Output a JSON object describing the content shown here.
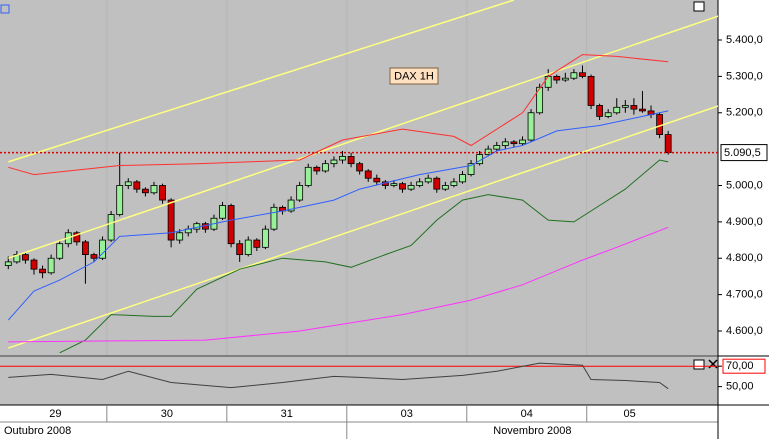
{
  "chart_data": {
    "type": "candlestick",
    "annotation": "DAX 1H",
    "ylim": [
      4534,
      5510
    ],
    "yticks": [
      {
        "value": 5400,
        "label": "5.400,0"
      },
      {
        "value": 5300,
        "label": "5.300,0"
      },
      {
        "value": 5200,
        "label": "5.200,0"
      },
      {
        "value": 5000,
        "label": "5.000,0"
      },
      {
        "value": 4900,
        "label": "4.900,0"
      },
      {
        "value": 4800,
        "label": "4.800,0"
      },
      {
        "value": 4700,
        "label": "4.700,0"
      },
      {
        "value": 4600,
        "label": "4.600,0"
      }
    ],
    "last_price_label": "5.090,5",
    "up_color": "#98f098",
    "down_color": "#d00000",
    "months": [
      {
        "label": "Outubro 2008",
        "days": [
          {
            "label": "29",
            "candles": [
              [
                4780,
                4805,
                4770,
                4790
              ],
              [
                4790,
                4820,
                4785,
                4810
              ],
              [
                4810,
                4815,
                4785,
                4795
              ],
              [
                4795,
                4800,
                4755,
                4770
              ],
              [
                4770,
                4780,
                4745,
                4760
              ],
              [
                4760,
                4810,
                4755,
                4800
              ],
              [
                4800,
                4850,
                4795,
                4840
              ],
              [
                4840,
                4880,
                4830,
                4870
              ],
              [
                4870,
                4875,
                4835,
                4845
              ],
              [
                4845,
                4850,
                4730,
                4810
              ],
              [
                4810,
                4815,
                4790,
                4800
              ],
              [
                4800,
                4860,
                4795,
                4850
              ]
            ]
          },
          {
            "label": "30",
            "candles": [
              [
                4850,
                4930,
                4845,
                4920
              ],
              [
                4920,
                5090,
                4915,
                5000
              ],
              [
                5000,
                5020,
                4990,
                5010
              ],
              [
                5010,
                5015,
                4980,
                4990
              ],
              [
                4990,
                4995,
                4970,
                4980
              ],
              [
                4980,
                5010,
                4975,
                5000
              ],
              [
                5000,
                5005,
                4950,
                4960
              ],
              [
                4960,
                4965,
                4830,
                4850
              ],
              [
                4850,
                4880,
                4840,
                4870
              ],
              [
                4870,
                4890,
                4860,
                4880
              ],
              [
                4880,
                4900,
                4870,
                4895
              ],
              [
                4895,
                4900,
                4870,
                4880
              ],
              [
                4880,
                4920,
                4875,
                4910
              ],
              [
                4910,
                4955,
                4905,
                4945
              ]
            ]
          },
          {
            "label": "31",
            "candles": [
              [
                4945,
                4950,
                4830,
                4840
              ],
              [
                4840,
                4850,
                4790,
                4810
              ],
              [
                4810,
                4860,
                4805,
                4850
              ],
              [
                4850,
                4855,
                4820,
                4830
              ],
              [
                4830,
                4890,
                4825,
                4880
              ],
              [
                4880,
                4950,
                4875,
                4940
              ],
              [
                4940,
                4945,
                4920,
                4930
              ],
              [
                4930,
                4970,
                4925,
                4960
              ],
              [
                4960,
                5010,
                4955,
                5000
              ],
              [
                5000,
                5060,
                4995,
                5050
              ],
              [
                5050,
                5055,
                5030,
                5040
              ],
              [
                5040,
                5070,
                5035,
                5060
              ],
              [
                5060,
                5080,
                5050,
                5070
              ],
              [
                5070,
                5095,
                5060,
                5080
              ]
            ]
          }
        ]
      },
      {
        "label": "Novembro 2008",
        "days": [
          {
            "label": "03",
            "candles": [
              [
                5080,
                5090,
                5050,
                5060
              ],
              [
                5060,
                5065,
                5030,
                5040
              ],
              [
                5040,
                5045,
                5010,
                5020
              ],
              [
                5020,
                5030,
                5000,
                5010
              ],
              [
                5010,
                5015,
                4990,
                5000
              ],
              [
                5000,
                5015,
                4995,
                5005
              ],
              [
                5005,
                5010,
                4980,
                4990
              ],
              [
                4990,
                5010,
                4985,
                5000
              ],
              [
                5000,
                5020,
                4995,
                5010
              ],
              [
                5010,
                5030,
                5005,
                5020
              ],
              [
                5020,
                5025,
                4980,
                4990
              ],
              [
                4990,
                5010,
                4985,
                5000
              ],
              [
                5000,
                5020,
                4995,
                5010
              ],
              [
                5010,
                5040,
                5005,
                5030
              ]
            ]
          },
          {
            "label": "04",
            "candles": [
              [
                5030,
                5070,
                5025,
                5060
              ],
              [
                5060,
                5095,
                5055,
                5085
              ],
              [
                5085,
                5110,
                5080,
                5100
              ],
              [
                5100,
                5120,
                5095,
                5110
              ],
              [
                5110,
                5130,
                5100,
                5120
              ],
              [
                5120,
                5125,
                5105,
                5115
              ],
              [
                5115,
                5135,
                5110,
                5125
              ],
              [
                5125,
                5210,
                5120,
                5200
              ],
              [
                5200,
                5280,
                5195,
                5270
              ],
              [
                5270,
                5320,
                5260,
                5300
              ],
              [
                5300,
                5305,
                5280,
                5290
              ],
              [
                5290,
                5310,
                5285,
                5295
              ],
              [
                5295,
                5320,
                5290,
                5310
              ],
              [
                5310,
                5330,
                5295,
                5300
              ]
            ]
          },
          {
            "label": "05",
            "candles": [
              [
                5300,
                5305,
                5210,
                5220
              ],
              [
                5220,
                5225,
                5180,
                5190
              ],
              [
                5190,
                5210,
                5185,
                5200
              ],
              [
                5200,
                5240,
                5195,
                5215
              ],
              [
                5215,
                5235,
                5200,
                5220
              ],
              [
                5220,
                5240,
                5195,
                5210
              ],
              [
                5210,
                5260,
                5200,
                5205
              ],
              [
                5205,
                5220,
                5185,
                5195
              ],
              [
                5195,
                5200,
                5130,
                5140
              ],
              [
                5140,
                5150,
                5085,
                5090.5
              ]
            ]
          }
        ]
      }
    ],
    "overlays": [
      {
        "color": "#ffff80",
        "x": [
          0,
          59
        ],
        "values": [
          5065,
          5510
        ]
      },
      {
        "color": "#ffff80",
        "x": [
          0,
          83
        ],
        "values": [
          4800,
          5467
        ]
      },
      {
        "color": "#ffff80",
        "x": [
          0,
          83
        ],
        "values": [
          4553,
          5220
        ]
      },
      {
        "color": "#ff3030",
        "x": [
          0,
          3,
          13,
          22,
          34,
          39,
          46,
          52,
          54,
          60,
          63,
          67,
          71,
          77
        ],
        "values": [
          5050,
          5030,
          5055,
          5060,
          5070,
          5125,
          5155,
          5135,
          5110,
          5200,
          5300,
          5360,
          5355,
          5340
        ]
      },
      {
        "color": "#3060ff",
        "x": [
          0,
          3,
          6,
          10,
          13,
          19,
          26,
          32,
          38,
          41,
          48,
          54,
          57,
          60,
          64,
          69,
          74,
          77
        ],
        "values": [
          4630,
          4710,
          4740,
          4790,
          4860,
          4870,
          4905,
          4930,
          4960,
          4990,
          5030,
          5055,
          5095,
          5110,
          5150,
          5165,
          5190,
          5205
        ]
      },
      {
        "color": "#207020",
        "x": [
          6,
          9,
          12,
          17,
          19,
          22,
          27,
          32,
          37,
          40,
          44,
          47,
          50,
          53,
          56,
          60,
          63,
          66,
          69,
          72,
          76,
          77
        ],
        "values": [
          4540,
          4575,
          4645,
          4640,
          4640,
          4715,
          4770,
          4800,
          4790,
          4775,
          4810,
          4835,
          4905,
          4960,
          4975,
          4960,
          4905,
          4900,
          4945,
          4990,
          5070,
          5065
        ]
      },
      {
        "color": "#ff30ff",
        "x": [
          0,
          23,
          34,
          46,
          54,
          60,
          67,
          71,
          77
        ],
        "values": [
          4570,
          4575,
          4600,
          4645,
          4685,
          4727,
          4795,
          4830,
          4885
        ]
      }
    ],
    "indicator": {
      "type": "line",
      "color": "#404040",
      "x": [
        0,
        5,
        11,
        14,
        19,
        26,
        32,
        38,
        41,
        46,
        53,
        57,
        62,
        67,
        68,
        72,
        76,
        77
      ],
      "values": [
        59,
        62,
        57,
        65,
        54,
        49,
        54,
        60,
        59,
        57,
        61,
        65,
        73,
        71,
        57,
        56,
        54,
        48
      ],
      "ylim": [
        32,
        79
      ],
      "yticks": [
        {
          "value": 70,
          "label": "70,00"
        },
        {
          "value": 50,
          "label": "50,00"
        }
      ],
      "level": 70,
      "level_color": "#ff0000"
    }
  }
}
